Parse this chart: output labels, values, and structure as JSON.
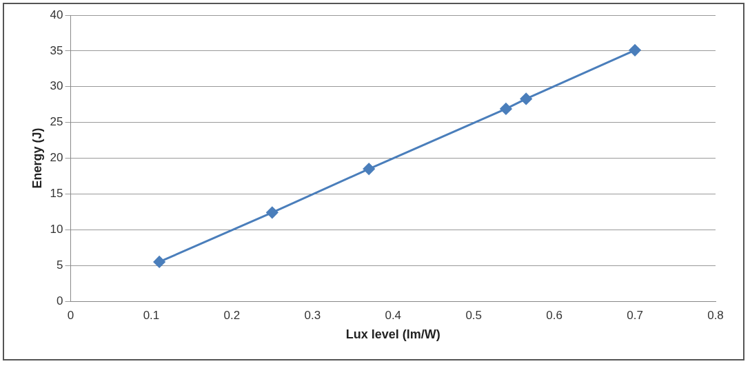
{
  "chart_data": {
    "type": "line",
    "xlabel": "Lux level (lm/W)",
    "ylabel": "Energy (J)",
    "x": [
      0.11,
      0.25,
      0.37,
      0.54,
      0.565,
      0.7
    ],
    "series": [
      {
        "color": "#4a7ebb",
        "values": [
          5.5,
          12.4,
          18.5,
          26.9,
          28.3,
          35.1
        ]
      }
    ],
    "xlim": [
      0,
      0.8
    ],
    "xticks": [
      0,
      0.1,
      0.2,
      0.3,
      0.4,
      0.5,
      0.6,
      0.7,
      0.8
    ],
    "ylim": [
      0,
      40
    ],
    "yticks": [
      0,
      5,
      10,
      15,
      20,
      25,
      30,
      35,
      40
    ],
    "grid": "y",
    "legend": false,
    "marker": "diamond",
    "line_style": "solid"
  }
}
